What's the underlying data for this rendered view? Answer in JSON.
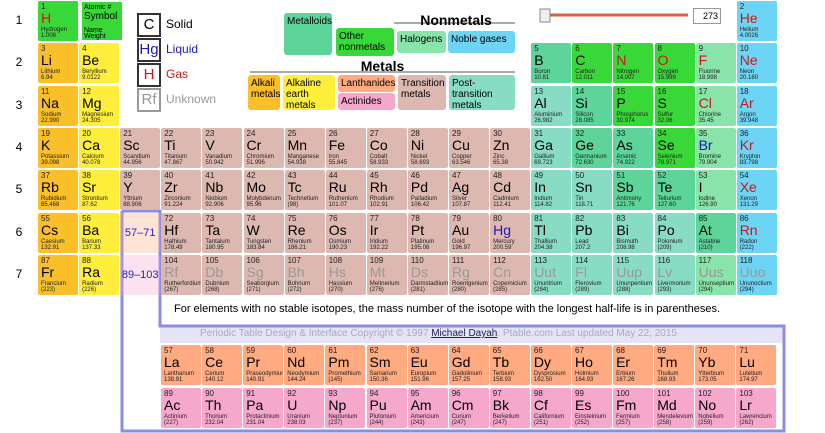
{
  "key": {
    "number": "1",
    "symbol": "H",
    "name": "Hydrogen",
    "weight": "1.008",
    "atomic_label": "Atomic #",
    "symbol_label": "Symbol",
    "name_label": "Name",
    "weight_label": "Weight"
  },
  "states": {
    "s": {
      "symbol": "C",
      "label": "Solid",
      "color": "#000000"
    },
    "l": {
      "symbol": "Hg",
      "label": "Liquid",
      "color": "#1a1ab8"
    },
    "g": {
      "symbol": "H",
      "label": "Gas",
      "color": "#c81818"
    },
    "u": {
      "symbol": "Rf",
      "label": "Unknown",
      "color": "#999999"
    }
  },
  "headings": {
    "nonmetals": "Nonmetals",
    "metals": "Metals"
  },
  "categories": {
    "metalloid": {
      "label": "Metalloids",
      "color": "#5cd49a"
    },
    "nonmetal": {
      "label": "Other nonmetals",
      "color": "#38d838"
    },
    "halogen": {
      "label": "Halogens",
      "color": "#88e4a8"
    },
    "noble": {
      "label": "Noble gases",
      "color": "#6cd4f4"
    },
    "alkali": {
      "label": "Alkali metals",
      "color": "#fbbf2a"
    },
    "alkaline": {
      "label": "Alkaline earth metals",
      "color": "#ffee3b"
    },
    "lanth": {
      "label": "Lanthanides",
      "color": "#ffaa80"
    },
    "act": {
      "label": "Actinides",
      "color": "#f5a8cc"
    },
    "trans": {
      "label": "Transition metals",
      "color": "#dcb8b0"
    },
    "post": {
      "label": "Post-transition metals",
      "color": "#88dcc4"
    }
  },
  "temperature": "273",
  "periods": [
    {
      "label": "1",
      "cells": [
        [
          1,
          "H",
          "Hydrogen",
          "1.008",
          "nonmetal",
          "g"
        ],
        null,
        null,
        null,
        null,
        null,
        null,
        null,
        null,
        null,
        null,
        null,
        null,
        null,
        null,
        null,
        null,
        [
          2,
          "He",
          "Helium",
          "4.0026",
          "noble",
          "g"
        ]
      ]
    },
    {
      "label": "2",
      "cells": [
        [
          3,
          "Li",
          "Lithium",
          "6.94",
          "alkali",
          "s"
        ],
        [
          4,
          "Be",
          "Beryllium",
          "9.0122",
          "alkaline",
          "s"
        ],
        null,
        null,
        null,
        null,
        null,
        null,
        null,
        null,
        null,
        null,
        [
          5,
          "B",
          "Boron",
          "10.81",
          "metalloid",
          "s"
        ],
        [
          6,
          "C",
          "Carbon",
          "12.011",
          "nonmetal",
          "s"
        ],
        [
          7,
          "N",
          "Nitrogen",
          "14.007",
          "nonmetal",
          "g"
        ],
        [
          8,
          "O",
          "Oxygen",
          "15.999",
          "nonmetal",
          "g"
        ],
        [
          9,
          "F",
          "Fluorine",
          "18.998",
          "halogen",
          "g"
        ],
        [
          10,
          "Ne",
          "Neon",
          "20.180",
          "noble",
          "g"
        ]
      ]
    },
    {
      "label": "3",
      "cells": [
        [
          11,
          "Na",
          "Sodium",
          "22.990",
          "alkali",
          "s"
        ],
        [
          12,
          "Mg",
          "Magnesium",
          "24.305",
          "alkaline",
          "s"
        ],
        null,
        null,
        null,
        null,
        null,
        null,
        null,
        null,
        null,
        null,
        [
          13,
          "Al",
          "Aluminium",
          "26.982",
          "post",
          "s"
        ],
        [
          14,
          "Si",
          "Silicon",
          "28.085",
          "metalloid",
          "s"
        ],
        [
          15,
          "P",
          "Phosphorus",
          "30.974",
          "nonmetal",
          "s"
        ],
        [
          16,
          "S",
          "Sulfur",
          "32.06",
          "nonmetal",
          "s"
        ],
        [
          17,
          "Cl",
          "Chlorine",
          "35.45",
          "halogen",
          "g"
        ],
        [
          18,
          "Ar",
          "Argon",
          "39.948",
          "noble",
          "g"
        ]
      ]
    },
    {
      "label": "4",
      "cells": [
        [
          19,
          "K",
          "Potassium",
          "39.098",
          "alkali",
          "s"
        ],
        [
          20,
          "Ca",
          "Calcium",
          "40.078",
          "alkaline",
          "s"
        ],
        [
          21,
          "Sc",
          "Scandium",
          "44.956",
          "trans",
          "s"
        ],
        [
          22,
          "Ti",
          "Titanium",
          "47.867",
          "trans",
          "s"
        ],
        [
          23,
          "V",
          "Vanadium",
          "50.942",
          "trans",
          "s"
        ],
        [
          24,
          "Cr",
          "Chromium",
          "51.996",
          "trans",
          "s"
        ],
        [
          25,
          "Mn",
          "Manganese",
          "54.938",
          "trans",
          "s"
        ],
        [
          26,
          "Fe",
          "Iron",
          "55.845",
          "trans",
          "s"
        ],
        [
          27,
          "Co",
          "Cobalt",
          "58.933",
          "trans",
          "s"
        ],
        [
          28,
          "Ni",
          "Nickel",
          "58.693",
          "trans",
          "s"
        ],
        [
          29,
          "Cu",
          "Copper",
          "63.546",
          "trans",
          "s"
        ],
        [
          30,
          "Zn",
          "Zinc",
          "65.38",
          "trans",
          "s"
        ],
        [
          31,
          "Ga",
          "Gallium",
          "69.723",
          "post",
          "s"
        ],
        [
          32,
          "Ge",
          "Germanium",
          "72.630",
          "metalloid",
          "s"
        ],
        [
          33,
          "As",
          "Arsenic",
          "74.922",
          "metalloid",
          "s"
        ],
        [
          34,
          "Se",
          "Selenium",
          "78.971",
          "nonmetal",
          "s"
        ],
        [
          35,
          "Br",
          "Bromine",
          "79.904",
          "halogen",
          "l"
        ],
        [
          36,
          "Kr",
          "Krypton",
          "83.798",
          "noble",
          "g"
        ]
      ]
    },
    {
      "label": "5",
      "cells": [
        [
          37,
          "Rb",
          "Rubidium",
          "85.468",
          "alkali",
          "s"
        ],
        [
          38,
          "Sr",
          "Strontium",
          "87.62",
          "alkaline",
          "s"
        ],
        [
          39,
          "Y",
          "Yttrium",
          "88.906",
          "trans",
          "s"
        ],
        [
          40,
          "Zr",
          "Zirconium",
          "91.224",
          "trans",
          "s"
        ],
        [
          41,
          "Nb",
          "Niobium",
          "92.906",
          "trans",
          "s"
        ],
        [
          42,
          "Mo",
          "Molybdenum",
          "95.96",
          "trans",
          "s"
        ],
        [
          43,
          "Tc",
          "Technetium",
          "(98)",
          "trans",
          "s"
        ],
        [
          44,
          "Ru",
          "Ruthenium",
          "101.07",
          "trans",
          "s"
        ],
        [
          45,
          "Rh",
          "Rhodium",
          "102.91",
          "trans",
          "s"
        ],
        [
          46,
          "Pd",
          "Palladium",
          "106.42",
          "trans",
          "s"
        ],
        [
          47,
          "Ag",
          "Silver",
          "107.87",
          "trans",
          "s"
        ],
        [
          48,
          "Cd",
          "Cadmium",
          "112.41",
          "trans",
          "s"
        ],
        [
          49,
          "In",
          "Indium",
          "114.82",
          "post",
          "s"
        ],
        [
          50,
          "Sn",
          "Tin",
          "118.71",
          "post",
          "s"
        ],
        [
          51,
          "Sb",
          "Antimony",
          "121.76",
          "metalloid",
          "s"
        ],
        [
          52,
          "Te",
          "Tellurium",
          "127.60",
          "metalloid",
          "s"
        ],
        [
          53,
          "I",
          "Iodine",
          "126.90",
          "halogen",
          "s"
        ],
        [
          54,
          "Xe",
          "Xenon",
          "131.29",
          "noble",
          "g"
        ]
      ]
    },
    {
      "label": "6",
      "cells": [
        [
          55,
          "Cs",
          "Caesium",
          "132.91",
          "alkali",
          "s"
        ],
        [
          56,
          "Ba",
          "Barium",
          "137.33",
          "alkaline",
          "s"
        ],
        "57–71",
        [
          72,
          "Hf",
          "Hafnium",
          "178.49",
          "trans",
          "s"
        ],
        [
          73,
          "Ta",
          "Tantalum",
          "180.95",
          "trans",
          "s"
        ],
        [
          74,
          "W",
          "Tungsten",
          "183.84",
          "trans",
          "s"
        ],
        [
          75,
          "Re",
          "Rhenium",
          "186.21",
          "trans",
          "s"
        ],
        [
          76,
          "Os",
          "Osmium",
          "190.23",
          "trans",
          "s"
        ],
        [
          77,
          "Ir",
          "Iridium",
          "192.22",
          "trans",
          "s"
        ],
        [
          78,
          "Pt",
          "Platinum",
          "195.08",
          "trans",
          "s"
        ],
        [
          79,
          "Au",
          "Gold",
          "196.97",
          "trans",
          "s"
        ],
        [
          80,
          "Hg",
          "Mercury",
          "200.59",
          "trans",
          "l"
        ],
        [
          81,
          "Tl",
          "Thallium",
          "204.38",
          "post",
          "s"
        ],
        [
          82,
          "Pb",
          "Lead",
          "207.2",
          "post",
          "s"
        ],
        [
          83,
          "Bi",
          "Bismuth",
          "208.98",
          "post",
          "s"
        ],
        [
          84,
          "Po",
          "Polonium",
          "(209)",
          "post",
          "s"
        ],
        [
          85,
          "At",
          "Astatine",
          "(210)",
          "metalloid",
          "s"
        ],
        [
          86,
          "Rn",
          "Radon",
          "(222)",
          "noble",
          "g"
        ]
      ]
    },
    {
      "label": "7",
      "cells": [
        [
          87,
          "Fr",
          "Francium",
          "(223)",
          "alkali",
          "s"
        ],
        [
          88,
          "Ra",
          "Radium",
          "(226)",
          "alkaline",
          "s"
        ],
        "89–103",
        [
          104,
          "Rf",
          "Rutherfordium",
          "(267)",
          "trans",
          "u"
        ],
        [
          105,
          "Db",
          "Dubnium",
          "(268)",
          "trans",
          "u"
        ],
        [
          106,
          "Sg",
          "Seaborgium",
          "(271)",
          "trans",
          "u"
        ],
        [
          107,
          "Bh",
          "Bohrium",
          "(272)",
          "trans",
          "u"
        ],
        [
          108,
          "Hs",
          "Hassium",
          "(270)",
          "trans",
          "u"
        ],
        [
          109,
          "Mt",
          "Meitnerium",
          "(276)",
          "trans",
          "u"
        ],
        [
          110,
          "Ds",
          "Darmstadtium",
          "(281)",
          "trans",
          "u"
        ],
        [
          111,
          "Rg",
          "Roentgenium",
          "(280)",
          "trans",
          "u"
        ],
        [
          112,
          "Cn",
          "Copernicium",
          "(285)",
          "trans",
          "u"
        ],
        [
          113,
          "Uut",
          "Ununtrium",
          "(284)",
          "post",
          "u"
        ],
        [
          114,
          "Fl",
          "Flerovium",
          "(289)",
          "post",
          "u"
        ],
        [
          115,
          "Uup",
          "Ununpentium",
          "(288)",
          "post",
          "u"
        ],
        [
          116,
          "Lv",
          "Livermorium",
          "(293)",
          "post",
          "u"
        ],
        [
          117,
          "Uus",
          "Ununseptium",
          "(294)",
          "halogen",
          "u"
        ],
        [
          118,
          "Uuo",
          "Ununoctium",
          "(294)",
          "noble",
          "u"
        ]
      ]
    }
  ],
  "f_rows": [
    [
      [
        57,
        "La",
        "Lanthanum",
        "138.91",
        "lanth",
        "s"
      ],
      [
        58,
        "Ce",
        "Cerium",
        "140.12",
        "lanth",
        "s"
      ],
      [
        59,
        "Pr",
        "Praseodymium",
        "140.91",
        "lanth",
        "s"
      ],
      [
        60,
        "Nd",
        "Neodymium",
        "144.24",
        "lanth",
        "s"
      ],
      [
        61,
        "Pm",
        "Promethium",
        "(145)",
        "lanth",
        "s"
      ],
      [
        62,
        "Sm",
        "Samarium",
        "150.36",
        "lanth",
        "s"
      ],
      [
        63,
        "Eu",
        "Europium",
        "151.96",
        "lanth",
        "s"
      ],
      [
        64,
        "Gd",
        "Gadolinium",
        "157.25",
        "lanth",
        "s"
      ],
      [
        65,
        "Tb",
        "Terbium",
        "158.93",
        "lanth",
        "s"
      ],
      [
        66,
        "Dy",
        "Dysprosium",
        "162.50",
        "lanth",
        "s"
      ],
      [
        67,
        "Ho",
        "Holmium",
        "164.93",
        "lanth",
        "s"
      ],
      [
        68,
        "Er",
        "Erbium",
        "167.26",
        "lanth",
        "s"
      ],
      [
        69,
        "Tm",
        "Thulium",
        "168.93",
        "lanth",
        "s"
      ],
      [
        70,
        "Yb",
        "Ytterbium",
        "173.05",
        "lanth",
        "s"
      ],
      [
        71,
        "Lu",
        "Lutetium",
        "174.97",
        "lanth",
        "s"
      ]
    ],
    [
      [
        89,
        "Ac",
        "Actinium",
        "(227)",
        "act",
        "s"
      ],
      [
        90,
        "Th",
        "Thorium",
        "232.04",
        "act",
        "s"
      ],
      [
        91,
        "Pa",
        "Protactinium",
        "231.04",
        "act",
        "s"
      ],
      [
        92,
        "U",
        "Uranium",
        "238.03",
        "act",
        "s"
      ],
      [
        93,
        "Np",
        "Neptunium",
        "(237)",
        "act",
        "s"
      ],
      [
        94,
        "Pu",
        "Plutonium",
        "(244)",
        "act",
        "s"
      ],
      [
        95,
        "Am",
        "Americium",
        "(243)",
        "act",
        "s"
      ],
      [
        96,
        "Cm",
        "Curium",
        "(247)",
        "act",
        "s"
      ],
      [
        97,
        "Bk",
        "Berkelium",
        "(247)",
        "act",
        "s"
      ],
      [
        98,
        "Cf",
        "Californium",
        "(251)",
        "act",
        "s"
      ],
      [
        99,
        "Es",
        "Einsteinium",
        "(252)",
        "act",
        "s"
      ],
      [
        100,
        "Fm",
        "Fermium",
        "(257)",
        "act",
        "s"
      ],
      [
        101,
        "Md",
        "Mendelevium",
        "(258)",
        "act",
        "s"
      ],
      [
        102,
        "No",
        "Nobelium",
        "(259)",
        "act",
        "s"
      ],
      [
        103,
        "Lr",
        "Lawrencium",
        "(262)",
        "act",
        "s"
      ]
    ]
  ],
  "footnote": "For elements with no stable isotopes, the mass number of the isotope with the longest half-life is in parentheses.",
  "copyright": {
    "before": "Periodic Table Design & Interface Copyright © 1997",
    "link": "Michael Dayah",
    "after": ". Ptable.com Last updated May 22, 2015"
  }
}
